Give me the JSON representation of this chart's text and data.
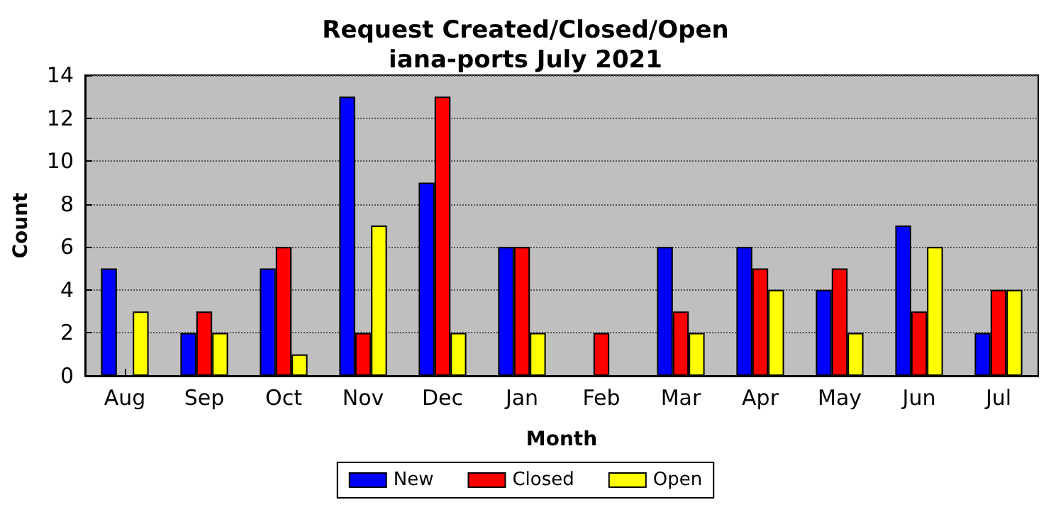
{
  "chart_data": {
    "type": "bar",
    "title": "Request Created/Closed/Open\niana-ports July 2021",
    "xlabel": "Month",
    "ylabel": "Count",
    "categories": [
      "Aug",
      "Sep",
      "Oct",
      "Nov",
      "Dec",
      "Jan",
      "Feb",
      "Mar",
      "Apr",
      "May",
      "Jun",
      "Jul"
    ],
    "series": [
      {
        "name": "New",
        "color": "#0000ff",
        "values": [
          5,
          2,
          5,
          13,
          9,
          6,
          0,
          6,
          6,
          4,
          7,
          2
        ]
      },
      {
        "name": "Closed",
        "color": "#ff0000",
        "values": [
          0,
          3,
          6,
          2,
          13,
          6,
          2,
          3,
          5,
          5,
          3,
          4
        ]
      },
      {
        "name": "Open",
        "color": "#ffff00",
        "values": [
          3,
          2,
          1,
          7,
          2,
          2,
          0,
          2,
          4,
          2,
          6,
          4
        ]
      }
    ],
    "ylim": [
      0,
      14
    ],
    "yticks": [
      0,
      2,
      4,
      6,
      8,
      10,
      12,
      14
    ],
    "grid": "y",
    "legend": "bottom"
  }
}
